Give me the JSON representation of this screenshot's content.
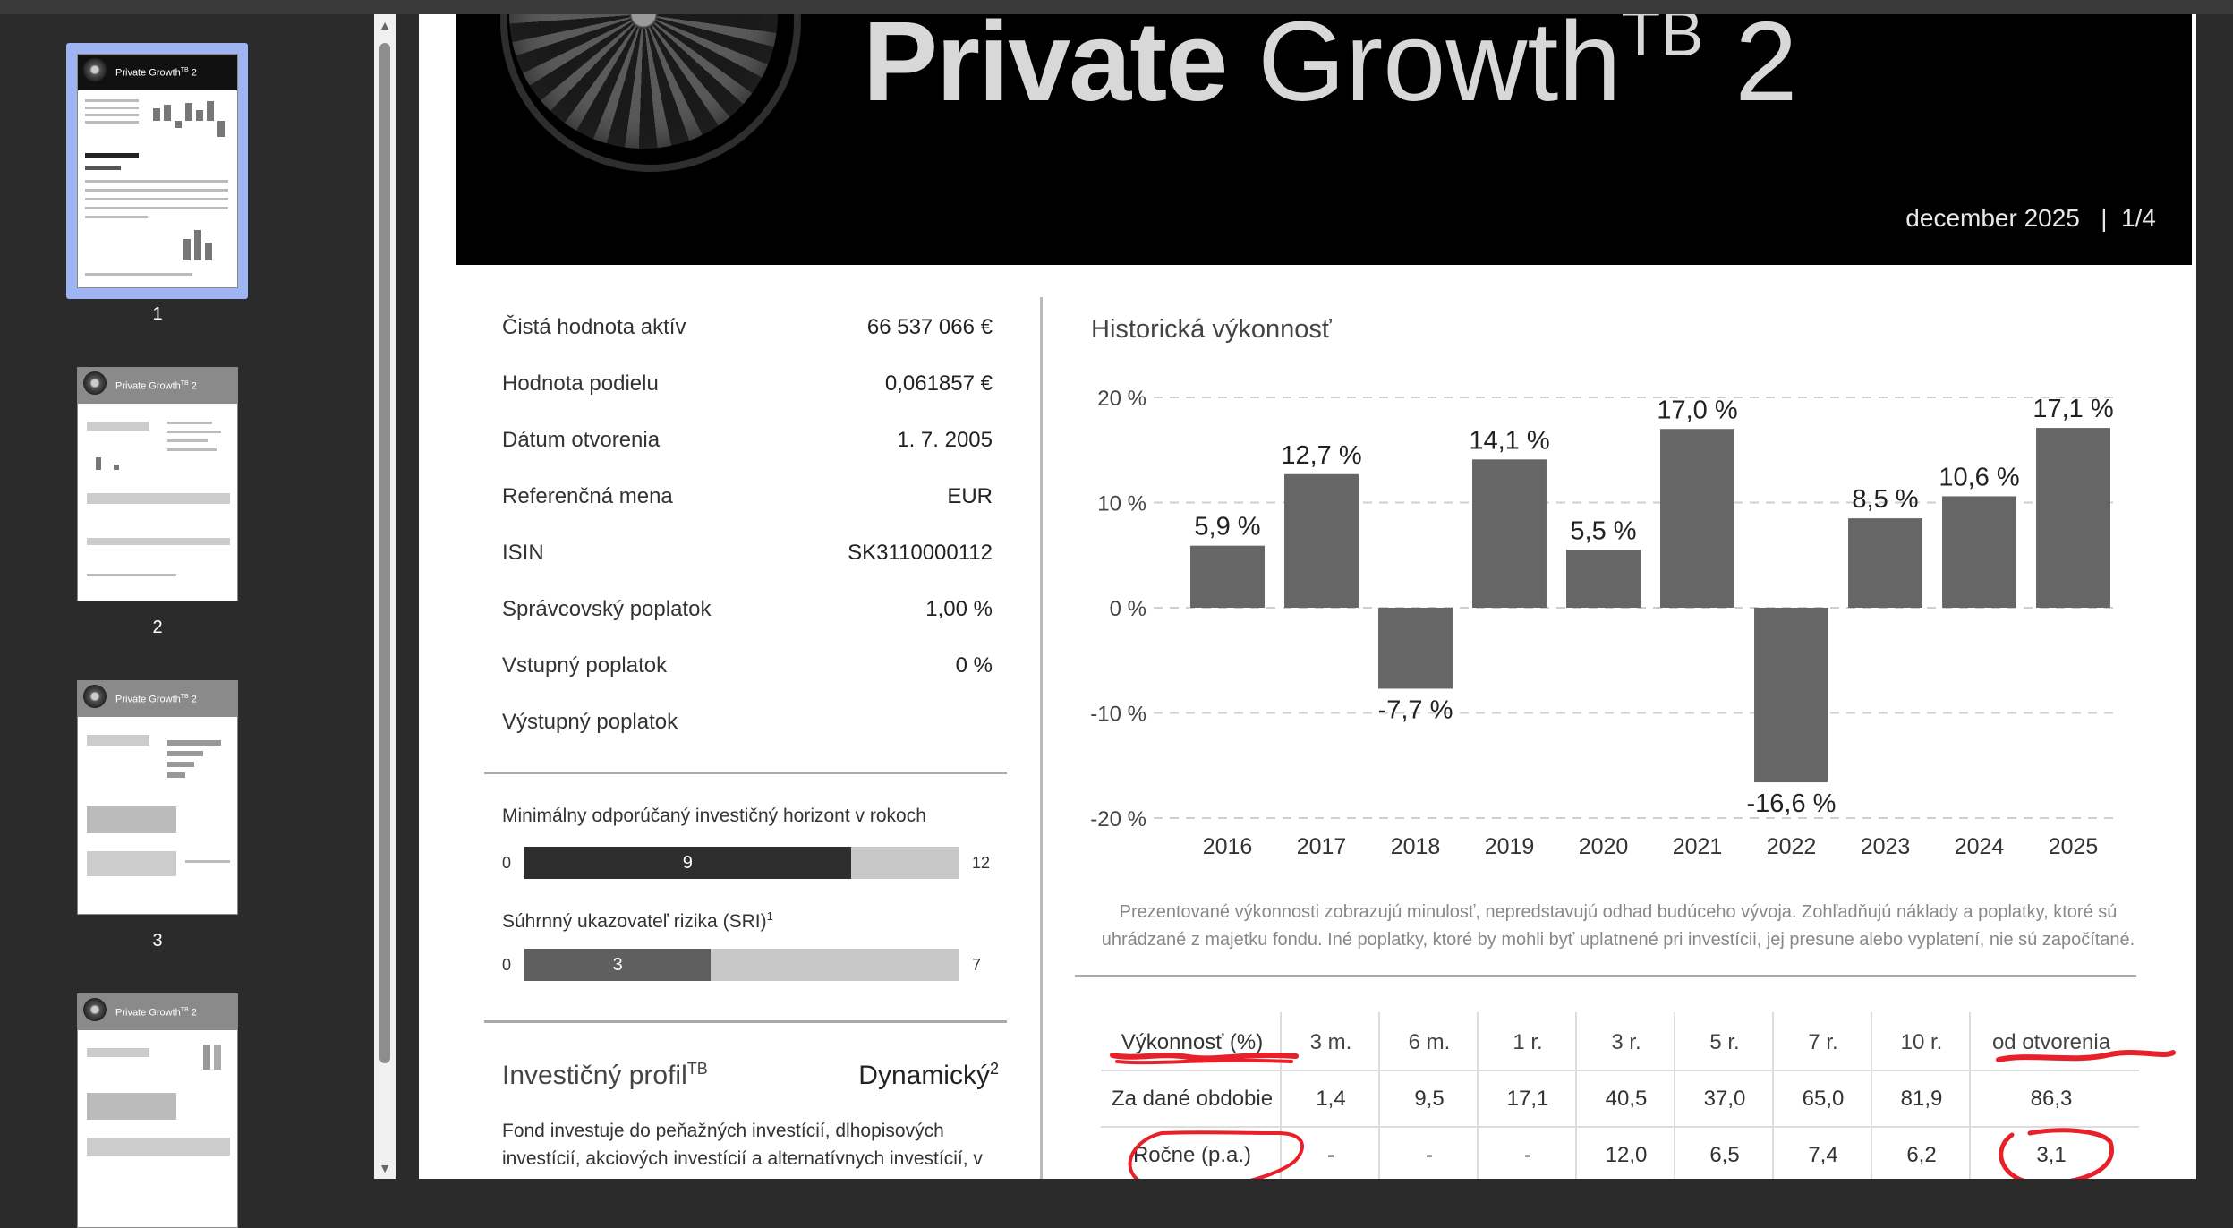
{
  "viewer": {
    "thumbnails": [
      {
        "page": "1",
        "selected": true
      },
      {
        "page": "2",
        "selected": false
      },
      {
        "page": "3",
        "selected": false
      },
      {
        "page": "4",
        "selected": false
      }
    ],
    "thumb_title": "Private Growth",
    "thumb_sup": "TB",
    "thumb_suffix": " 2"
  },
  "banner": {
    "title_bold": "Private",
    "title_light": " Growth",
    "title_sup": "TB",
    "title_suffix": " 2",
    "date": "december 2025",
    "separator": "|",
    "page": "1/4"
  },
  "info": [
    {
      "label": "Čistá hodnota aktív",
      "value": "66 537 066 €"
    },
    {
      "label": "Hodnota podielu",
      "value": "0,061857 €"
    },
    {
      "label": "Dátum otvorenia",
      "value": "1. 7. 2005"
    },
    {
      "label": "Referenčná mena",
      "value": "EUR"
    },
    {
      "label": "ISIN",
      "value": "SK3110000112"
    },
    {
      "label": "Správcovský poplatok",
      "value": "1,00 %"
    },
    {
      "label": "Vstupný poplatok",
      "value": "0 %"
    },
    {
      "label": "Výstupný poplatok",
      "value": ""
    }
  ],
  "horizon": {
    "label": "Minimálny odporúčaný investičný horizont v rokoch",
    "min": "0",
    "max": "12",
    "value": 9,
    "value_label": "9",
    "scale_max": 12,
    "color": "#2e2e2e"
  },
  "risk": {
    "label": "Súhrnný ukazovateľ rizika (SRI)",
    "label_sup": "1",
    "min": "0",
    "max": "7",
    "value": 3,
    "value_label": "3",
    "scale_max": 7,
    "color": "#5f5f5f"
  },
  "profile": {
    "label": "Investičný profil",
    "label_sup": "TB",
    "value": "Dynamický",
    "value_sup": "2",
    "text": "Fond investuje do peňažných investícií, dlhopisových investícií, akciových investícií a alternatívnych investícií, v"
  },
  "chart_title": "Historická výkonnosť",
  "chart_data": {
    "type": "bar",
    "categories": [
      "2016",
      "2017",
      "2018",
      "2019",
      "2020",
      "2021",
      "2022",
      "2023",
      "2024",
      "2025"
    ],
    "values": [
      5.9,
      12.7,
      -7.7,
      14.1,
      5.5,
      17.0,
      -16.6,
      8.5,
      10.6,
      17.1
    ],
    "value_labels": [
      "5,9 %",
      "12,7 %",
      "-7,7 %",
      "14,1 %",
      "5,5 %",
      "17,0 %",
      "-16,6 %",
      "8,5 %",
      "10,6 %",
      "17,1 %"
    ],
    "yticks": [
      20,
      10,
      0,
      -10,
      -20
    ],
    "ytick_labels": [
      "20 %",
      "10 %",
      "0 %",
      "-10 %",
      "-20 %"
    ],
    "ylim": [
      -20,
      20
    ],
    "grid": true,
    "bar_color": "#666666"
  },
  "disclaimer": "Prezentované výkonnosti zobrazujú minulosť, nepredstavujú odhad budúceho vývoja. Zohľadňujú náklady a poplatky, ktoré sú uhrádzané z majetku fondu. Iné poplatky, ktoré by mohli byť uplatnené pri investícii, jej presune alebo vyplatení, nie sú započítané.",
  "performance": {
    "header": [
      "Výkonnosť (%)",
      "3 m.",
      "6 m.",
      "1 r.",
      "3 r.",
      "5 r.",
      "7 r.",
      "10 r.",
      "od otvorenia"
    ],
    "rows": [
      [
        "Za dané obdobie",
        "1,4",
        "9,5",
        "17,1",
        "40,5",
        "37,0",
        "65,0",
        "81,9",
        "86,3"
      ],
      [
        "Ročne (p.a.)",
        "-",
        "-",
        "-",
        "12,0",
        "6,5",
        "7,4",
        "6,2",
        "3,1"
      ]
    ]
  },
  "annotation_color": "#e8202a"
}
